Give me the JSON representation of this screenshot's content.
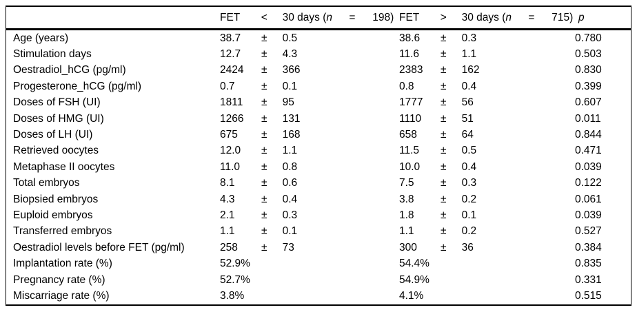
{
  "table": {
    "colors": {
      "text": "#000000",
      "background": "#ffffff",
      "border": "#000000"
    },
    "header": {
      "label": "",
      "group1": {
        "name": "FET",
        "op": "<",
        "days_prefix": "30 days (",
        "n_var": "n",
        "eq": "=",
        "count": "198)"
      },
      "group2": {
        "name": "FET",
        "op": ">",
        "days_prefix": "30 days (",
        "n_var": "n",
        "eq": "=",
        "count": "715)"
      },
      "p_label": "p"
    },
    "rows": [
      {
        "label": "Age (years)",
        "g1": {
          "val": "38.7",
          "pm": "±",
          "sd": "0.5"
        },
        "g2": {
          "val": "38.6",
          "pm": "±",
          "sd": "0.3"
        },
        "p": "0.780"
      },
      {
        "label": "Stimulation days",
        "g1": {
          "val": "12.7",
          "pm": "±",
          "sd": "4.3"
        },
        "g2": {
          "val": "11.6",
          "pm": "±",
          "sd": "1.1"
        },
        "p": "0.503"
      },
      {
        "label": "Oestradiol_hCG (pg/ml)",
        "g1": {
          "val": "2424",
          "pm": "±",
          "sd": "366"
        },
        "g2": {
          "val": "2383",
          "pm": "±",
          "sd": "162"
        },
        "p": "0.830"
      },
      {
        "label": "Progesterone_hCG (pg/ml)",
        "g1": {
          "val": "0.7",
          "pm": "±",
          "sd": "0.1"
        },
        "g2": {
          "val": "0.8",
          "pm": "±",
          "sd": "0.4"
        },
        "p": "0.399"
      },
      {
        "label": "Doses of FSH (UI)",
        "g1": {
          "val": "1811",
          "pm": "±",
          "sd": "95"
        },
        "g2": {
          "val": "1777",
          "pm": "±",
          "sd": "56"
        },
        "p": "0.607"
      },
      {
        "label": "Doses of HMG (UI)",
        "g1": {
          "val": "1266",
          "pm": "±",
          "sd": "131"
        },
        "g2": {
          "val": "1110",
          "pm": "±",
          "sd": "51"
        },
        "p": "0.011"
      },
      {
        "label": "Doses of LH (UI)",
        "g1": {
          "val": "675",
          "pm": "±",
          "sd": "168"
        },
        "g2": {
          "val": "658",
          "pm": "±",
          "sd": "64"
        },
        "p": "0.844"
      },
      {
        "label": "Retrieved oocytes",
        "g1": {
          "val": "12.0",
          "pm": "±",
          "sd": "1.1"
        },
        "g2": {
          "val": "11.5",
          "pm": "±",
          "sd": "0.5"
        },
        "p": "0.471"
      },
      {
        "label": "Metaphase II oocytes",
        "g1": {
          "val": "11.0",
          "pm": "±",
          "sd": "0.8"
        },
        "g2": {
          "val": "10.0",
          "pm": "±",
          "sd": "0.4"
        },
        "p": "0.039"
      },
      {
        "label": "Total embryos",
        "g1": {
          "val": "8.1",
          "pm": "±",
          "sd": "0.6"
        },
        "g2": {
          "val": "7.5",
          "pm": "±",
          "sd": "0.3"
        },
        "p": "0.122"
      },
      {
        "label": "Biopsied embryos",
        "g1": {
          "val": "4.3",
          "pm": "±",
          "sd": "0.4"
        },
        "g2": {
          "val": "3.8",
          "pm": "±",
          "sd": "0.2"
        },
        "p": "0.061"
      },
      {
        "label": "Euploid embryos",
        "g1": {
          "val": "2.1",
          "pm": "±",
          "sd": "0.3"
        },
        "g2": {
          "val": "1.8",
          "pm": "±",
          "sd": "0.1"
        },
        "p": "0.039"
      },
      {
        "label": "Transferred embryos",
        "g1": {
          "val": "1.1",
          "pm": "±",
          "sd": "0.1"
        },
        "g2": {
          "val": "1.1",
          "pm": "±",
          "sd": "0.2"
        },
        "p": "0.527"
      },
      {
        "label": "Oestradiol levels before FET (pg/ml)",
        "g1": {
          "val": "258",
          "pm": "±",
          "sd": "73"
        },
        "g2": {
          "val": "300",
          "pm": "±",
          "sd": "36"
        },
        "p": "0.384"
      },
      {
        "label": "Implantation rate (%)",
        "g1": {
          "val": "52.9%",
          "pm": "",
          "sd": ""
        },
        "g2": {
          "val": "54.4%",
          "pm": "",
          "sd": ""
        },
        "p": "0.835"
      },
      {
        "label": "Pregnancy rate (%)",
        "g1": {
          "val": "52.7%",
          "pm": "",
          "sd": ""
        },
        "g2": {
          "val": "54.9%",
          "pm": "",
          "sd": ""
        },
        "p": "0.331"
      },
      {
        "label": "Miscarriage rate (%)",
        "g1": {
          "val": "3.8%",
          "pm": "",
          "sd": ""
        },
        "g2": {
          "val": "4.1%",
          "pm": "",
          "sd": ""
        },
        "p": "0.515"
      }
    ]
  }
}
